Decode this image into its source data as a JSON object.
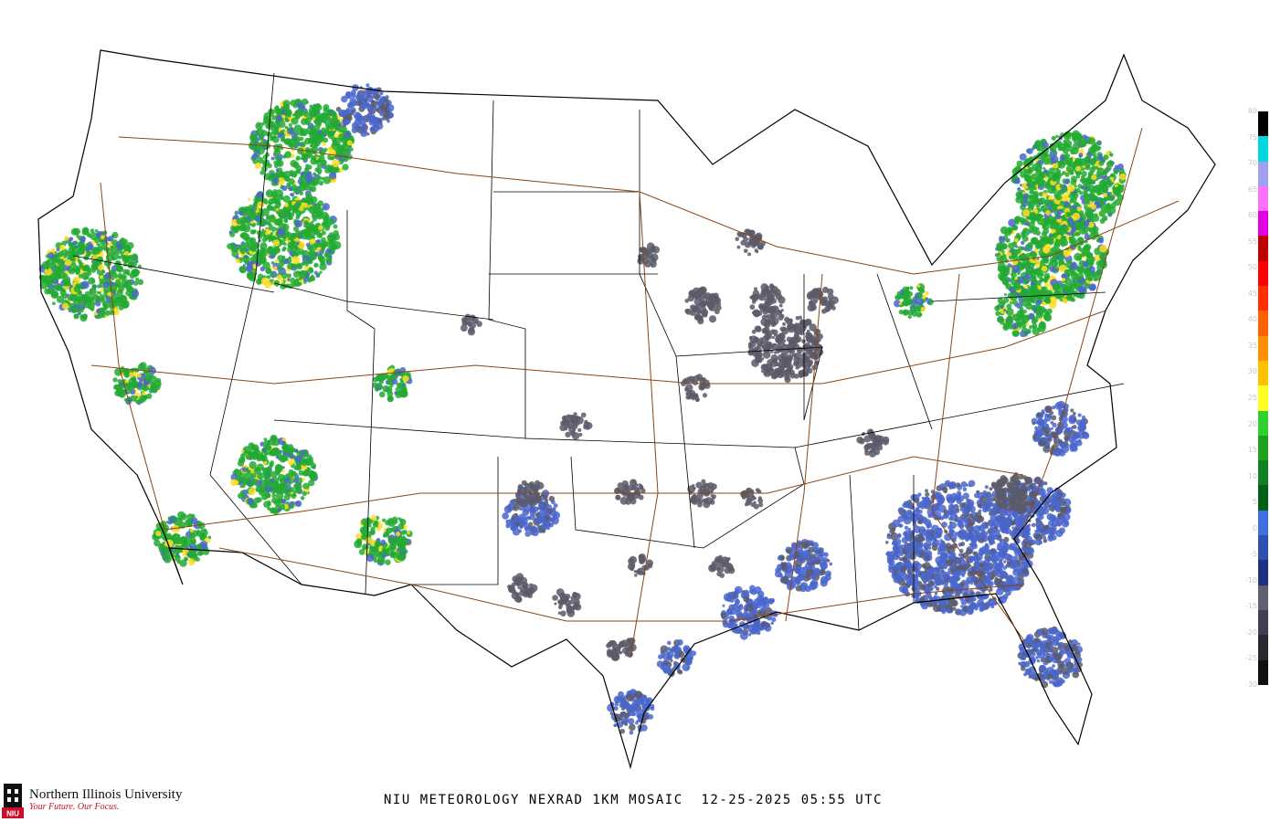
{
  "caption": "NIU METEOROLOGY NEXRAD 1KM MOSAIC  12-25-2025 05:55 UTC",
  "logo": {
    "name": "Northern Illinois University",
    "tagline": "Your Future. Our Focus.",
    "mark": "NIU",
    "color": "#c8102e"
  },
  "legend": {
    "units_labels": [
      "80",
      "75",
      "70",
      "65",
      "60",
      "55",
      "50",
      "45",
      "40",
      "35",
      "30",
      "25",
      "20",
      "15",
      "10",
      "5",
      "0",
      "-5",
      "-10",
      "-15",
      "-20",
      "-25",
      "-30"
    ],
    "colors": [
      "#000000",
      "#00d8e0",
      "#a0a0f0",
      "#ff70ff",
      "#e000e0",
      "#c00000",
      "#ff0000",
      "#ff3000",
      "#ff6000",
      "#ff9000",
      "#ffc000",
      "#ffff20",
      "#30d030",
      "#20a020",
      "#108020",
      "#006018",
      "#4070e0",
      "#3050b0",
      "#203080",
      "#606070",
      "#404050",
      "#282830",
      "#101010"
    ]
  },
  "map_colors": {
    "borders": "#000000",
    "highways": "#8b4513",
    "light_echo": "#4a66cc",
    "clear_air": "#5a5a6a",
    "moderate_echo": "#22aa33",
    "heavy_echo": "#ffdd22"
  }
}
